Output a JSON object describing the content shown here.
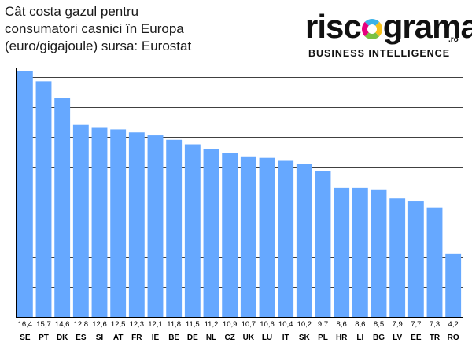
{
  "header": {
    "title_lines": [
      "Cât costa gazul pentru",
      "consumatori casnici în Europa",
      "(euro/gigajoule) sursa: Eurostat"
    ]
  },
  "logo": {
    "word_before": "risc",
    "word_after": "grama",
    "tld": ".ro",
    "tagline": "BUSINESS INTELLIGENCE"
  },
  "colors": {
    "bar": "#66a8ff",
    "grid": "#000000",
    "axis": "#000000"
  },
  "chart_data": {
    "type": "bar",
    "categories": [
      "SE",
      "PT",
      "DK",
      "ES",
      "SI",
      "AT",
      "FR",
      "IE",
      "BE",
      "DE",
      "NL",
      "CZ",
      "UK",
      "LU",
      "IT",
      "SK",
      "PL",
      "HR",
      "LI",
      "BG",
      "LV",
      "EE",
      "TR",
      "RO"
    ],
    "values": [
      16.4,
      15.7,
      14.6,
      12.8,
      12.6,
      12.5,
      12.3,
      12.1,
      11.8,
      11.5,
      11.2,
      10.9,
      10.7,
      10.6,
      10.4,
      10.2,
      9.7,
      8.6,
      8.6,
      8.5,
      7.9,
      7.7,
      7.3,
      4.2
    ],
    "value_labels": [
      "16,4",
      "15,7",
      "14,6",
      "12,8",
      "12,6",
      "12,5",
      "12,3",
      "12,1",
      "11,8",
      "11,5",
      "11,2",
      "10,9",
      "10,7",
      "10,6",
      "10,4",
      "10,2",
      "9,7",
      "8,6",
      "8,6",
      "8,5",
      "7,9",
      "7,7",
      "7,3",
      "4,2"
    ],
    "ylim": [
      0,
      16.4
    ],
    "gridlines": [
      2,
      4,
      6,
      8,
      10,
      12,
      14,
      16
    ],
    "grid": true,
    "legend": false
  }
}
